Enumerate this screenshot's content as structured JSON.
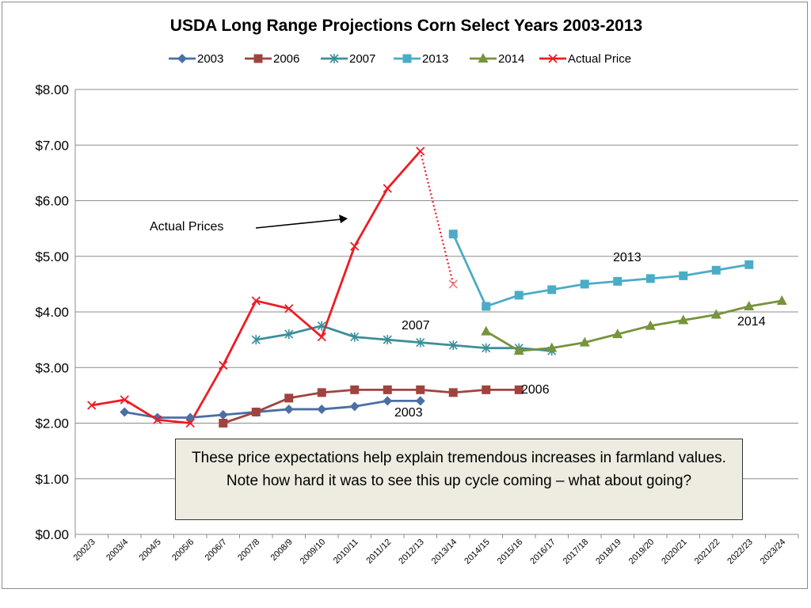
{
  "chart_data": {
    "type": "line",
    "title": "USDA Long Range Projections Corn Select Years 2003-2013",
    "categories": [
      "2002/3",
      "2003/4",
      "2004/5",
      "2005/6",
      "2006/7",
      "2007/8",
      "2008/9",
      "2009/10",
      "2010/11",
      "2011/12",
      "2012/13",
      "2013/14",
      "2014/15",
      "2015/16",
      "2016/17",
      "2017/18",
      "2018/19",
      "2019/20",
      "2020/21",
      "2021/22",
      "2022/23",
      "2023/24"
    ],
    "yticks": [
      "$0.00",
      "$1.00",
      "$2.00",
      "$3.00",
      "$4.00",
      "$5.00",
      "$6.00",
      "$7.00",
      "$8.00"
    ],
    "ylim": [
      0,
      8
    ],
    "grid": true,
    "legend_position": "top",
    "series": [
      {
        "name": "2003",
        "color": "#4a6fa5",
        "marker": "diamond",
        "values": [
          null,
          2.2,
          2.1,
          2.1,
          2.15,
          2.2,
          2.25,
          2.25,
          2.3,
          2.4,
          2.4,
          null,
          null,
          null,
          null,
          null,
          null,
          null,
          null,
          null,
          null,
          null
        ]
      },
      {
        "name": "2006",
        "color": "#a0433f",
        "marker": "square",
        "values": [
          null,
          null,
          null,
          null,
          2.0,
          2.2,
          2.45,
          2.55,
          2.6,
          2.6,
          2.6,
          2.55,
          2.6,
          2.6,
          null,
          null,
          null,
          null,
          null,
          null,
          null,
          null
        ]
      },
      {
        "name": "2007",
        "color": "#3b8f9a",
        "marker": "star",
        "values": [
          null,
          null,
          null,
          null,
          null,
          3.5,
          3.6,
          3.75,
          3.55,
          3.5,
          3.45,
          3.4,
          3.35,
          3.35,
          3.3,
          null,
          null,
          null,
          null,
          null,
          null,
          null
        ]
      },
      {
        "name": "2013",
        "color": "#4bacc6",
        "marker": "square",
        "values": [
          null,
          null,
          null,
          null,
          null,
          null,
          null,
          null,
          null,
          null,
          null,
          5.4,
          4.1,
          4.3,
          4.4,
          4.5,
          4.55,
          4.6,
          4.65,
          4.75,
          4.85,
          null
        ]
      },
      {
        "name": "2014",
        "color": "#77933c",
        "marker": "triangle",
        "values": [
          null,
          null,
          null,
          null,
          null,
          null,
          null,
          null,
          null,
          null,
          null,
          null,
          3.65,
          3.3,
          3.35,
          3.45,
          3.6,
          3.75,
          3.85,
          3.95,
          4.1,
          4.2
        ]
      },
      {
        "name": "Actual Price",
        "color": "#ee1c24",
        "marker": "x",
        "values": [
          2.32,
          2.42,
          2.06,
          2.0,
          3.04,
          4.2,
          4.06,
          3.55,
          5.18,
          6.22,
          6.89,
          4.5,
          null,
          null,
          null,
          null,
          null,
          null,
          null,
          null,
          null,
          null
        ],
        "projected_from_index": 10
      }
    ],
    "annotations": {
      "actual_prices": "Actual Prices",
      "label_2003": "2003",
      "label_2006": "2006",
      "label_2007": "2007",
      "label_2013": "2013",
      "label_2014": "2014"
    },
    "note": "These price expectations help explain tremendous increases in farmland values. Note how hard it was to see this up cycle coming – what about going?"
  }
}
